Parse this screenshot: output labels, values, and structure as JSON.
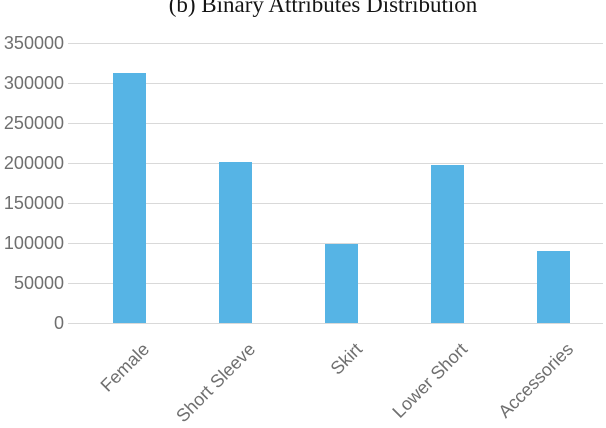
{
  "title": "(b) Binary Attributes Distribution",
  "chart_data": {
    "type": "bar",
    "title": "(b) Binary Attributes Distribution",
    "categories": [
      "Female",
      "Short Sleeve",
      "Skirt",
      "Lower Short",
      "Accessories"
    ],
    "values": [
      313000,
      201000,
      99000,
      197000,
      90000
    ],
    "xlabel": "",
    "ylabel": "",
    "ylim": [
      0,
      350000
    ],
    "ytick_interval": 50000,
    "ytick_labels": [
      "350000",
      "300000",
      "250000",
      "200000",
      "150000",
      "100000",
      "50000",
      "0"
    ],
    "grid": true,
    "legend": false,
    "bar_color": "#56b4e5",
    "gridline_color": "#d9d9d9",
    "tick_label_color": "#6f6f6f",
    "title_color": "#141414"
  }
}
